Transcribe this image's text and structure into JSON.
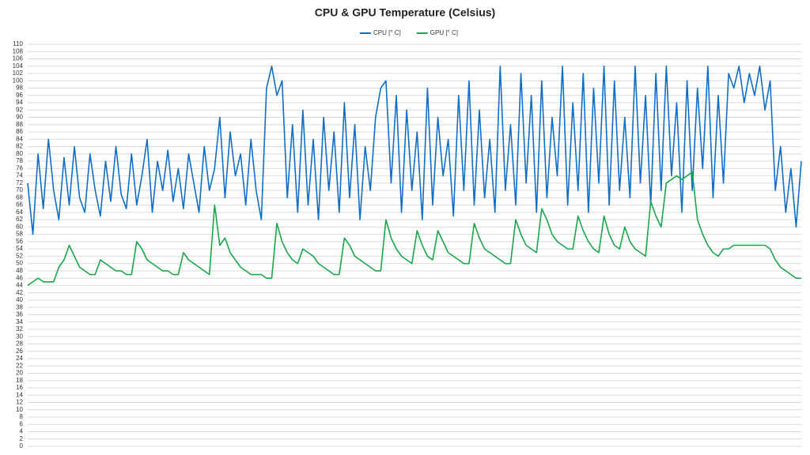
{
  "chart_data": {
    "type": "line",
    "title": "CPU & GPU Temperature (Celsius)",
    "ylim": [
      0,
      110
    ],
    "yticks": [
      0,
      2,
      4,
      6,
      8,
      10,
      12,
      14,
      16,
      18,
      20,
      22,
      24,
      26,
      28,
      30,
      32,
      34,
      36,
      38,
      40,
      42,
      44,
      46,
      48,
      50,
      52,
      54,
      56,
      58,
      60,
      62,
      64,
      66,
      68,
      70,
      72,
      74,
      76,
      78,
      80,
      82,
      84,
      86,
      88,
      90,
      92,
      94,
      96,
      98,
      100,
      102,
      104,
      106,
      108,
      110
    ],
    "grid": true,
    "legend": "top",
    "series": [
      {
        "name": "CPU [° C]",
        "color": "#0f6fc6",
        "values": [
          72,
          58,
          80,
          65,
          84,
          70,
          62,
          79,
          66,
          82,
          68,
          64,
          80,
          70,
          63,
          78,
          67,
          82,
          69,
          65,
          80,
          66,
          74,
          84,
          64,
          78,
          70,
          81,
          67,
          76,
          65,
          80,
          72,
          64,
          82,
          70,
          76,
          90,
          68,
          86,
          74,
          80,
          66,
          84,
          70,
          62,
          98,
          104,
          96,
          100,
          68,
          88,
          64,
          92,
          66,
          84,
          62,
          90,
          70,
          86,
          64,
          94,
          68,
          88,
          62,
          82,
          70,
          90,
          98,
          100,
          72,
          96,
          64,
          92,
          70,
          86,
          62,
          98,
          66,
          90,
          74,
          84,
          63,
          96,
          70,
          100,
          66,
          92,
          68,
          84,
          64,
          104,
          70,
          88,
          66,
          102,
          72,
          96,
          64,
          100,
          68,
          90,
          74,
          104,
          66,
          94,
          70,
          102,
          64,
          98,
          72,
          104,
          66,
          100,
          70,
          90,
          68,
          104,
          72,
          96,
          66,
          102,
          70,
          104,
          74,
          94,
          64,
          100,
          70,
          98,
          76,
          104,
          68,
          96,
          72,
          102,
          98,
          104,
          94,
          102,
          96,
          104,
          92,
          100,
          70,
          82,
          64,
          76,
          60,
          78
        ]
      },
      {
        "name": "GPU [° C]",
        "color": "#18a84a",
        "values": [
          44,
          45,
          46,
          45,
          45,
          45,
          49,
          51,
          55,
          52,
          49,
          48,
          47,
          47,
          51,
          50,
          49,
          48,
          48,
          47,
          47,
          56,
          54,
          51,
          50,
          49,
          48,
          48,
          47,
          47,
          53,
          51,
          50,
          49,
          48,
          47,
          66,
          55,
          57,
          53,
          51,
          49,
          48,
          47,
          47,
          47,
          46,
          46,
          61,
          56,
          53,
          51,
          50,
          54,
          53,
          52,
          50,
          49,
          48,
          47,
          47,
          57,
          55,
          52,
          51,
          50,
          49,
          48,
          48,
          62,
          57,
          54,
          52,
          51,
          50,
          59,
          55,
          52,
          51,
          59,
          56,
          53,
          52,
          51,
          50,
          50,
          61,
          57,
          54,
          53,
          52,
          51,
          50,
          50,
          62,
          58,
          55,
          54,
          53,
          65,
          62,
          58,
          56,
          55,
          54,
          54,
          63,
          59,
          56,
          54,
          53,
          63,
          58,
          55,
          54,
          60,
          56,
          54,
          53,
          52,
          67,
          63,
          60,
          72,
          73,
          74,
          73,
          74,
          75,
          62,
          58,
          55,
          53,
          52,
          54,
          54,
          55,
          55,
          55,
          55,
          55,
          55,
          55,
          54,
          51,
          49,
          48,
          47,
          46,
          46
        ]
      }
    ]
  }
}
